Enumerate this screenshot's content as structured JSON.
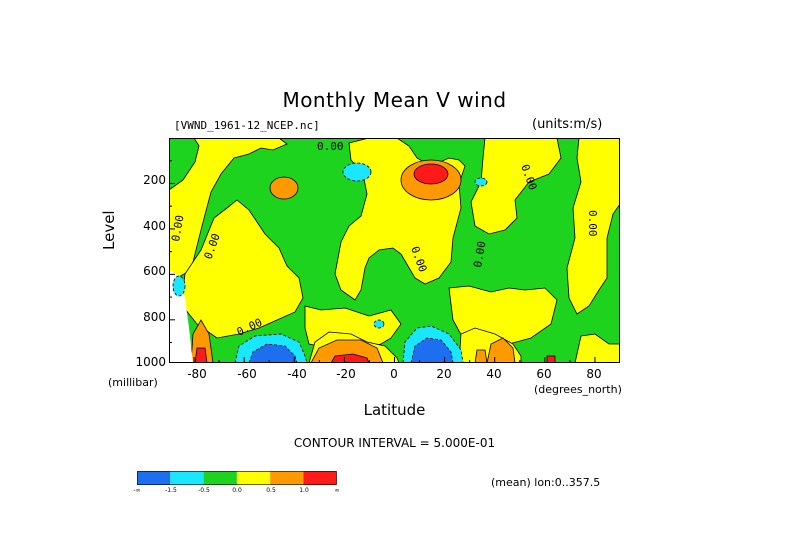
{
  "chart_data": {
    "type": "heatmap",
    "title": "Monthly Mean V wind",
    "file_label": "[VWND_1961-12_NCEP.nc]",
    "units_label": "(units:m/s)",
    "xlabel": "Latitude",
    "xlabel_unit": "(degrees_north)",
    "ylabel": "Level",
    "ylabel_unit": "(millibar)",
    "xlim": [
      -90,
      90
    ],
    "ylim": [
      1000,
      10
    ],
    "x_ticks": [
      "-80",
      "-60",
      "-40",
      "-20",
      "0",
      "20",
      "40",
      "60",
      "80"
    ],
    "y_ticks": [
      "200",
      "400",
      "600",
      "800",
      "1000"
    ],
    "contour_interval_text": "CONTOUR INTERVAL = 5.000E-01",
    "mean_text": "(mean) lon:0..357.5",
    "contour_labels": [
      "0.00",
      "0.00",
      "0.00",
      "0.00",
      "0.00",
      "0.00",
      "0.00",
      "0.00"
    ],
    "colorbar": {
      "colors": [
        "#1e6ff0",
        "#19e6ff",
        "#1ed31e",
        "#ffff00",
        "#ff9900",
        "#ff1a1a"
      ],
      "labels": [
        "-∞",
        "-1.5",
        "-0.5",
        "0.0",
        "0.5",
        "1.0",
        "∞"
      ]
    },
    "features": [
      {
        "name": "positive max",
        "lat": 13,
        "level": 150,
        "value": 1.5
      },
      {
        "name": "negative min",
        "lat": 13,
        "level": 950,
        "value": -1.5
      },
      {
        "name": "negative min",
        "lat": -50,
        "level": 970,
        "value": -1.5
      },
      {
        "name": "positive max",
        "lat": -20,
        "level": 970,
        "value": 1.5
      },
      {
        "name": "positive max",
        "lat": -80,
        "level": 950,
        "value": 1.5
      }
    ]
  }
}
